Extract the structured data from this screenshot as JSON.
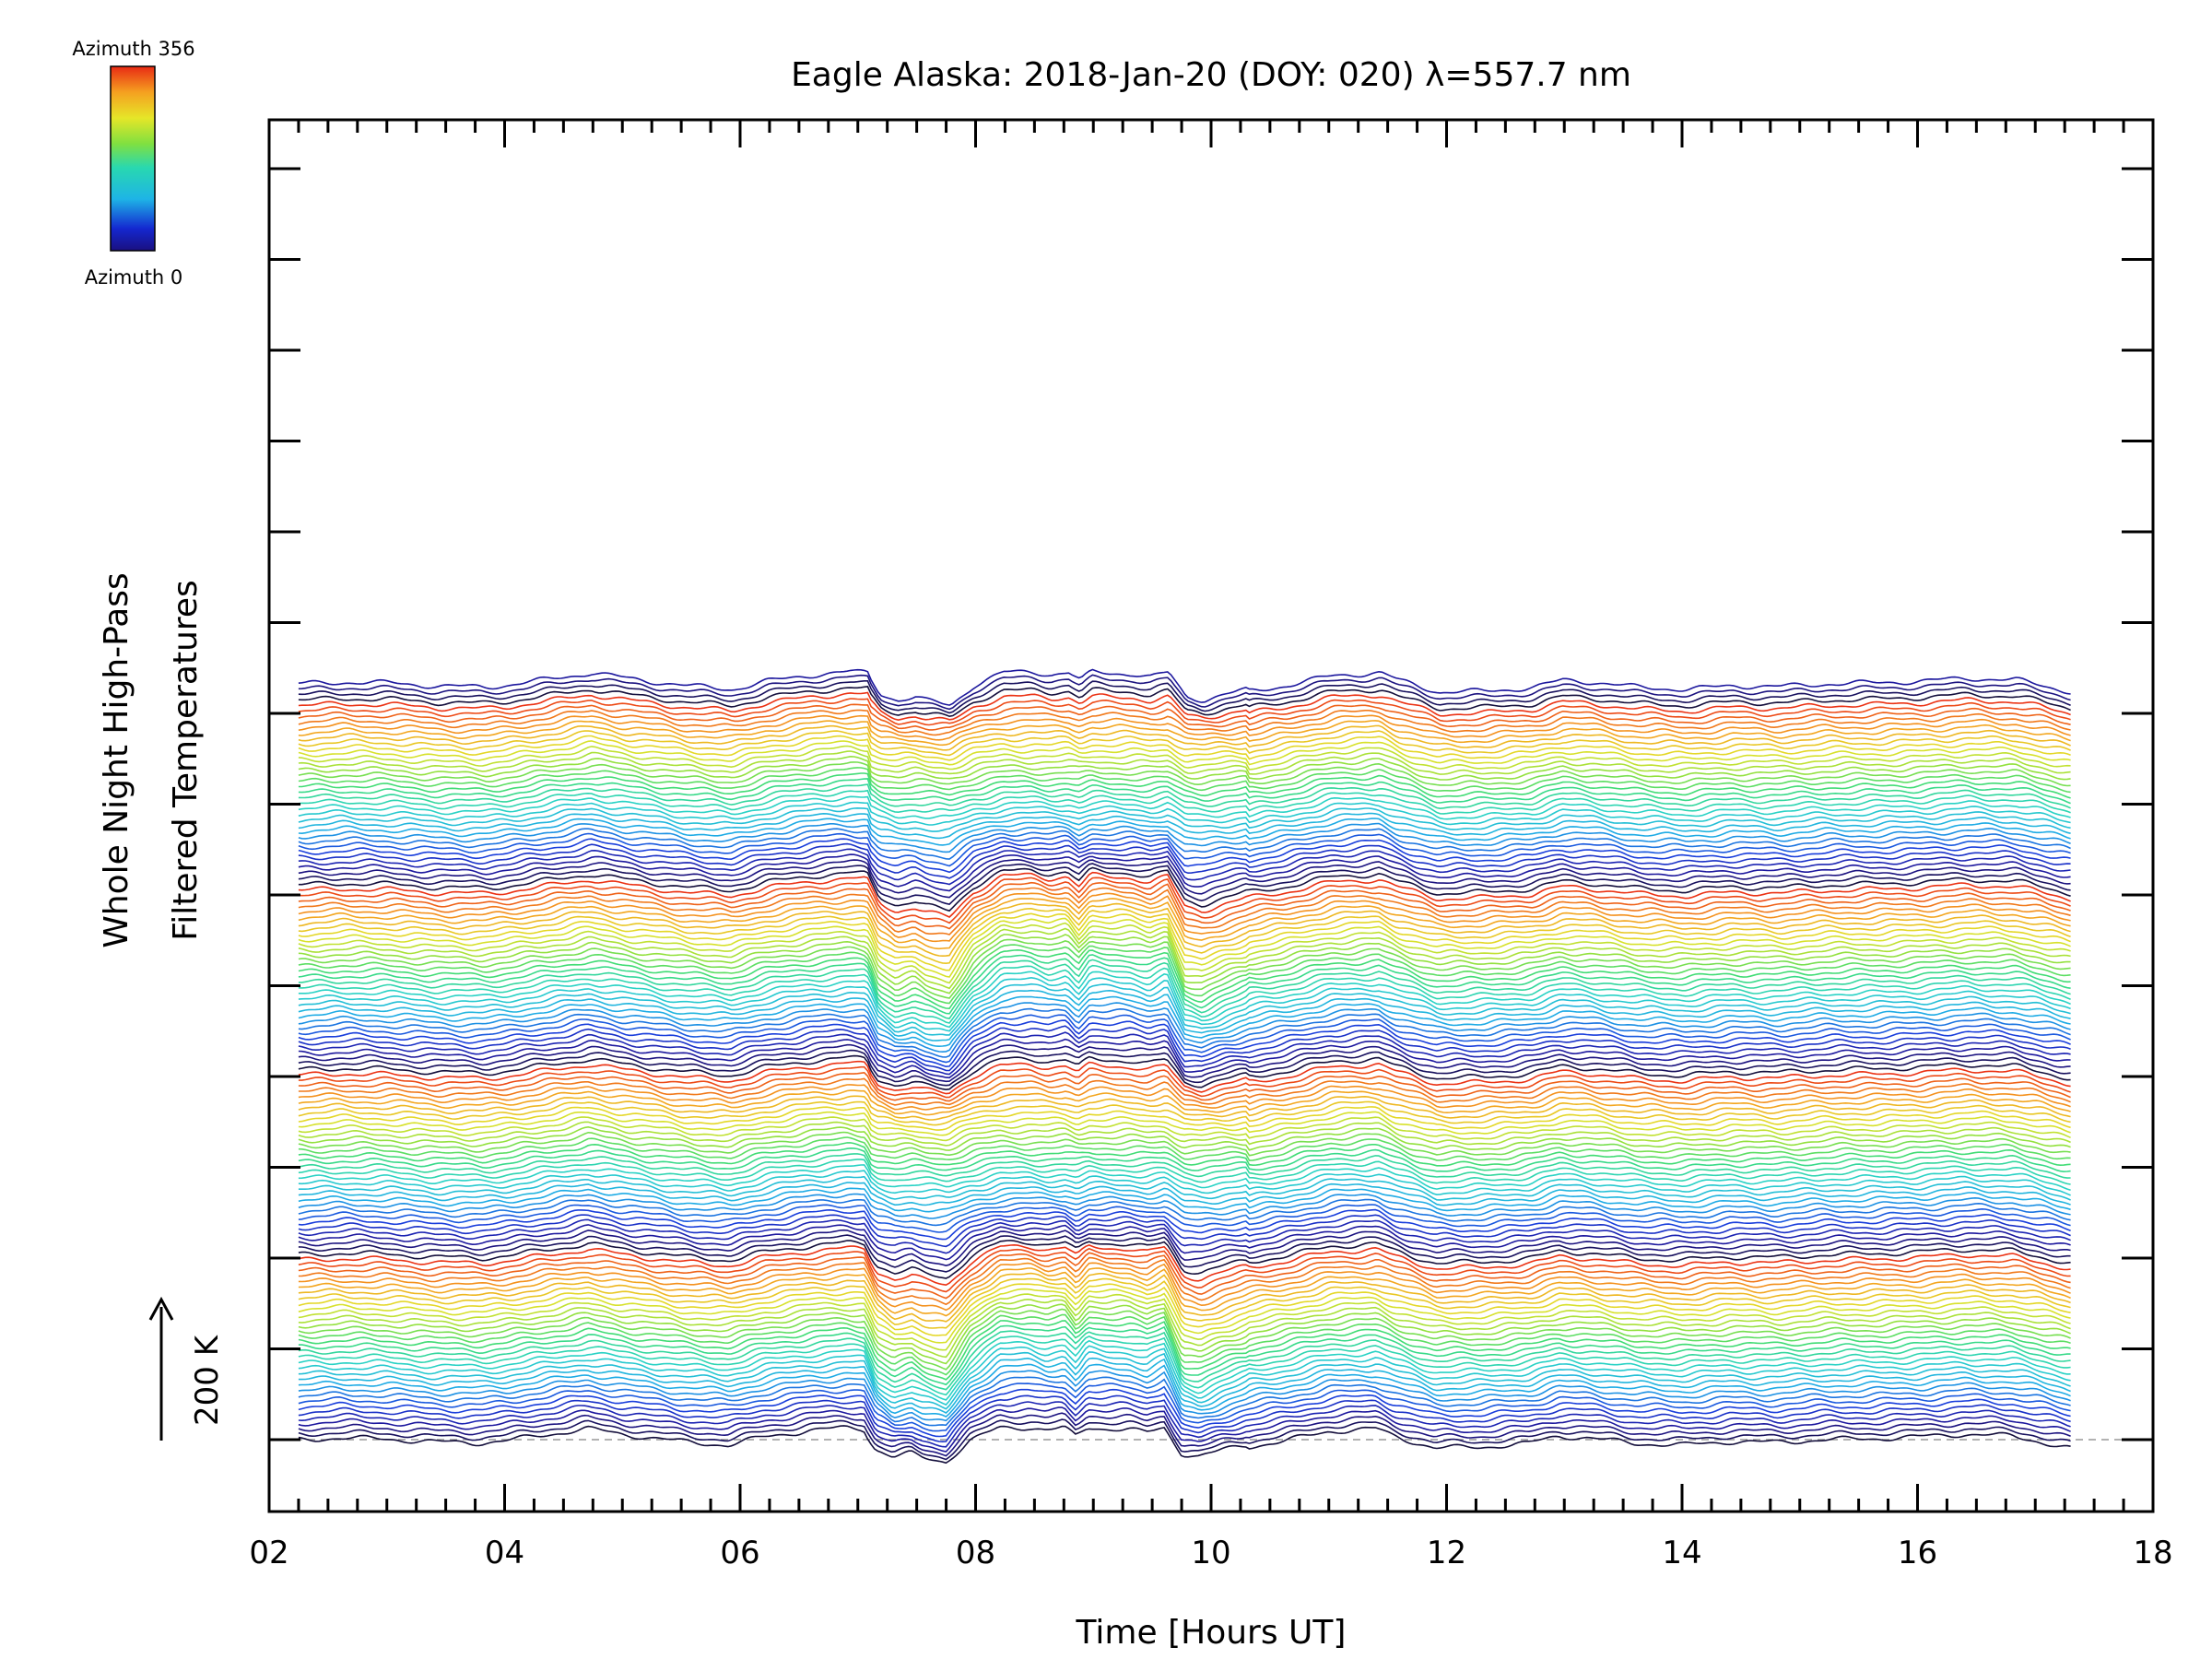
{
  "chart_data": {
    "type": "line",
    "title": "Eagle Alaska: 2018-Jan-20 (DOY: 020) λ=557.7 nm",
    "xlabel": "Time [Hours UT]",
    "ylabel_lines": [
      "Whole Night High-Pass",
      "Filtered Temperatures"
    ],
    "xlim": [
      2,
      18
    ],
    "x_tick_labels": [
      "02",
      "04",
      "06",
      "08",
      "10",
      "12",
      "14",
      "16",
      "18"
    ],
    "x_data_range": [
      2.25,
      17.3
    ],
    "scale_bar_label": "200 K",
    "colorbar": {
      "top_label": "Azimuth 356",
      "bottom_label": "Azimuth 0",
      "colormap": "rainbow",
      "min": 0,
      "max": 356
    },
    "stack": {
      "count": 140,
      "colors_per_cycle": 34,
      "azimuth_range": [
        0,
        356
      ],
      "baseline_dashed": true
    },
    "profile_knots": [
      [
        2.25,
        0
      ],
      [
        2.6,
        1.8
      ],
      [
        3.0,
        0.8
      ],
      [
        3.4,
        -2.5
      ],
      [
        3.8,
        -3.5
      ],
      [
        4.0,
        -1.2
      ],
      [
        4.5,
        8
      ],
      [
        4.7,
        12
      ],
      [
        5.0,
        6
      ],
      [
        5.5,
        -2
      ],
      [
        5.9,
        -6
      ],
      [
        6.2,
        3
      ],
      [
        6.6,
        10
      ],
      [
        6.9,
        13
      ],
      [
        7.05,
        12
      ],
      [
        7.15,
        -14
      ],
      [
        7.3,
        -25
      ],
      [
        7.45,
        -20
      ],
      [
        7.55,
        -26
      ],
      [
        7.75,
        -32
      ],
      [
        7.95,
        -2
      ],
      [
        8.2,
        17
      ],
      [
        8.45,
        18
      ],
      [
        8.6,
        14
      ],
      [
        8.75,
        17
      ],
      [
        8.85,
        5
      ],
      [
        8.95,
        18
      ],
      [
        9.1,
        16
      ],
      [
        9.3,
        15
      ],
      [
        9.45,
        10
      ],
      [
        9.6,
        17
      ],
      [
        9.75,
        -20
      ],
      [
        9.9,
        -24
      ],
      [
        10.1,
        -15
      ],
      [
        10.3,
        -8
      ],
      [
        10.6,
        -2
      ],
      [
        11.0,
        9
      ],
      [
        11.4,
        12
      ],
      [
        11.55,
        4
      ],
      [
        11.9,
        -9
      ],
      [
        12.3,
        -8
      ],
      [
        12.7,
        -4
      ],
      [
        12.95,
        4
      ],
      [
        13.2,
        2
      ],
      [
        13.6,
        -4
      ],
      [
        14.0,
        -6
      ],
      [
        14.4,
        -2
      ],
      [
        14.8,
        -3
      ],
      [
        15.2,
        0
      ],
      [
        15.6,
        1
      ],
      [
        16.0,
        3
      ],
      [
        16.4,
        6
      ],
      [
        16.8,
        4
      ],
      [
        17.0,
        -1
      ],
      [
        17.3,
        -10
      ]
    ]
  }
}
